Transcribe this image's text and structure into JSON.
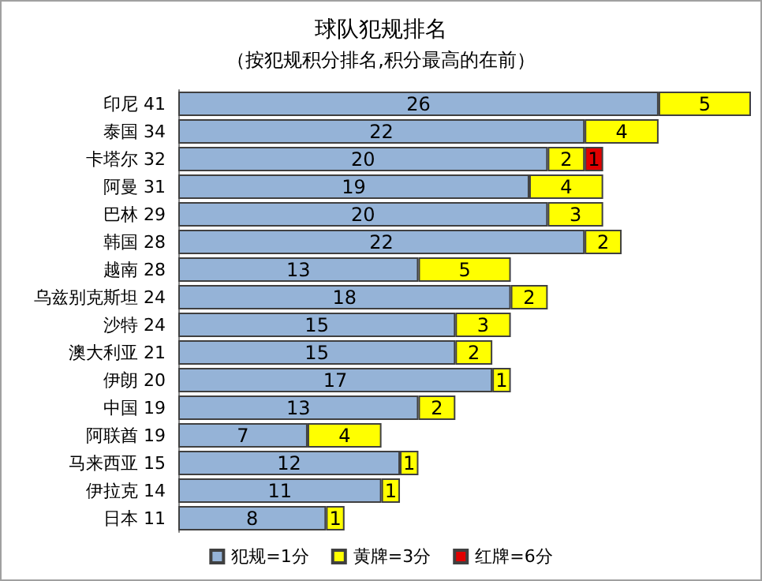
{
  "chart_data": {
    "type": "bar",
    "title": "球队犯规排名",
    "subtitle": "（按犯规积分排名,积分最高的在前）",
    "orientation": "horizontal",
    "stacked": true,
    "data_labels": true,
    "legend": "bottom",
    "categories": [
      "印尼 41",
      "泰国 34",
      "卡塔尔 32",
      "阿曼 31",
      "巴林 29",
      "韩国 28",
      "越南 28",
      "乌兹别克斯坦 24",
      "沙特 24",
      "澳大利亚 21",
      "伊朗 20",
      "中国 19",
      "阿联酋 19",
      "马来西亚 15",
      "伊拉克 14",
      "日本 11"
    ],
    "series": [
      {
        "name": "犯规=1分",
        "color": "#95b3d7",
        "values": [
          26,
          22,
          20,
          19,
          20,
          22,
          13,
          18,
          15,
          15,
          17,
          13,
          7,
          12,
          11,
          8
        ]
      },
      {
        "name": "黄牌=3分",
        "color": "#ffff00",
        "values": [
          5,
          4,
          2,
          4,
          3,
          2,
          5,
          2,
          3,
          2,
          1,
          2,
          4,
          1,
          1,
          1
        ]
      },
      {
        "name": "红牌=6分",
        "color": "#e00000",
        "values": [
          null,
          null,
          1,
          null,
          null,
          null,
          null,
          null,
          null,
          null,
          null,
          null,
          null,
          null,
          null,
          null
        ]
      }
    ]
  }
}
